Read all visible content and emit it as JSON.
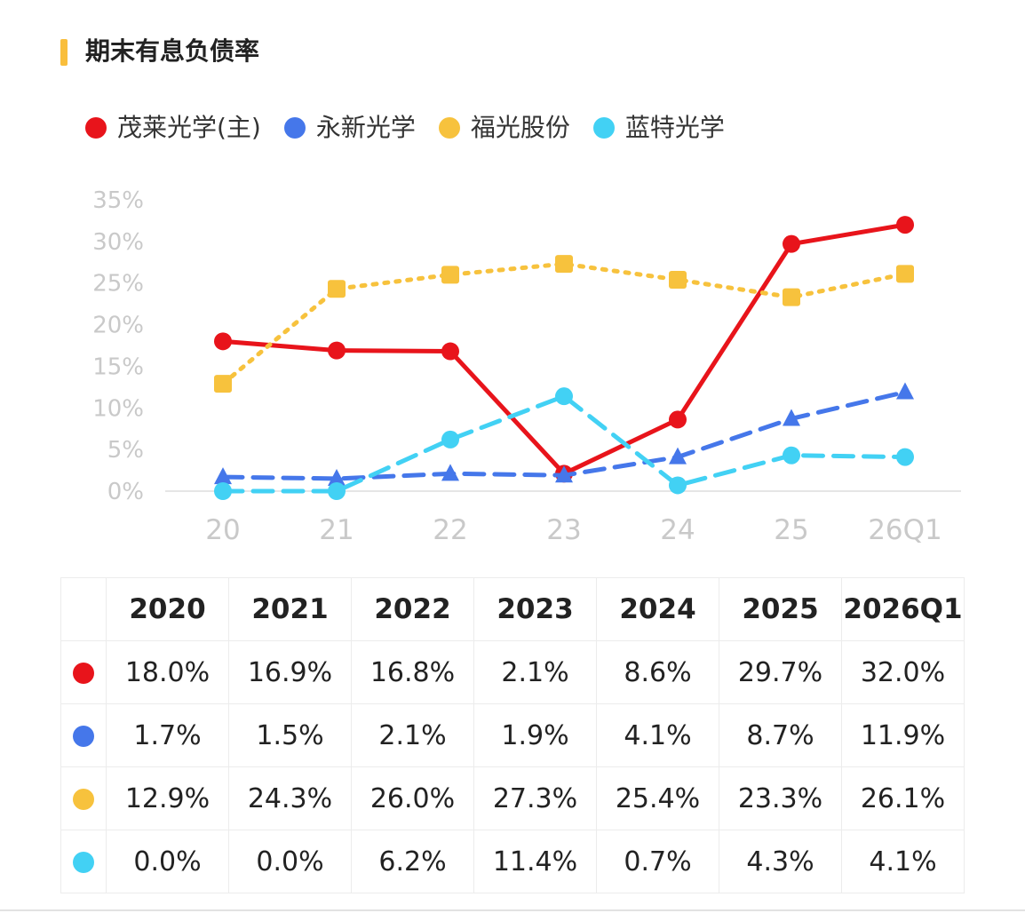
{
  "title": "期末有息负债率",
  "colors": {
    "title_accent": "#f9be3c"
  },
  "chart_data": {
    "type": "line",
    "x": [
      "20",
      "21",
      "22",
      "23",
      "24",
      "25",
      "26Q1"
    ],
    "ylim": [
      0,
      35
    ],
    "yticks": [
      "0%",
      "5%",
      "10%",
      "15%",
      "20%",
      "25%",
      "30%",
      "35%"
    ],
    "grid": false,
    "legend": "top-left",
    "series": [
      {
        "name": "茂莱光学(主)",
        "color": "#e8141b",
        "style": "solid",
        "marker": "circle",
        "values": [
          18.0,
          16.9,
          16.8,
          2.1,
          8.6,
          29.7,
          32.0
        ]
      },
      {
        "name": "永新光学",
        "color": "#4577ea",
        "style": "dashed",
        "marker": "triangle",
        "values": [
          1.7,
          1.5,
          2.1,
          1.9,
          4.1,
          8.7,
          11.9
        ]
      },
      {
        "name": "福光股份",
        "color": "#f7c23d",
        "style": "dotted",
        "marker": "square",
        "values": [
          12.9,
          24.3,
          26.0,
          27.3,
          25.4,
          23.3,
          26.1
        ]
      },
      {
        "name": "蓝特光学",
        "color": "#42d1f4",
        "style": "dashed",
        "marker": "circle",
        "values": [
          0.0,
          0.0,
          6.2,
          11.4,
          0.7,
          4.3,
          4.1
        ]
      }
    ]
  },
  "table": {
    "headers": [
      "2020",
      "2021",
      "2022",
      "2023",
      "2024",
      "2025",
      "2026Q1"
    ],
    "rows": [
      {
        "color": "#e8141b",
        "values": [
          "18.0%",
          "16.9%",
          "16.8%",
          "2.1%",
          "8.6%",
          "29.7%",
          "32.0%"
        ]
      },
      {
        "color": "#4577ea",
        "values": [
          "1.7%",
          "1.5%",
          "2.1%",
          "1.9%",
          "4.1%",
          "8.7%",
          "11.9%"
        ]
      },
      {
        "color": "#f7c23d",
        "values": [
          "12.9%",
          "24.3%",
          "26.0%",
          "27.3%",
          "25.4%",
          "23.3%",
          "26.1%"
        ]
      },
      {
        "color": "#42d1f4",
        "values": [
          "0.0%",
          "0.0%",
          "6.2%",
          "11.4%",
          "0.7%",
          "4.3%",
          "4.1%"
        ]
      }
    ]
  }
}
